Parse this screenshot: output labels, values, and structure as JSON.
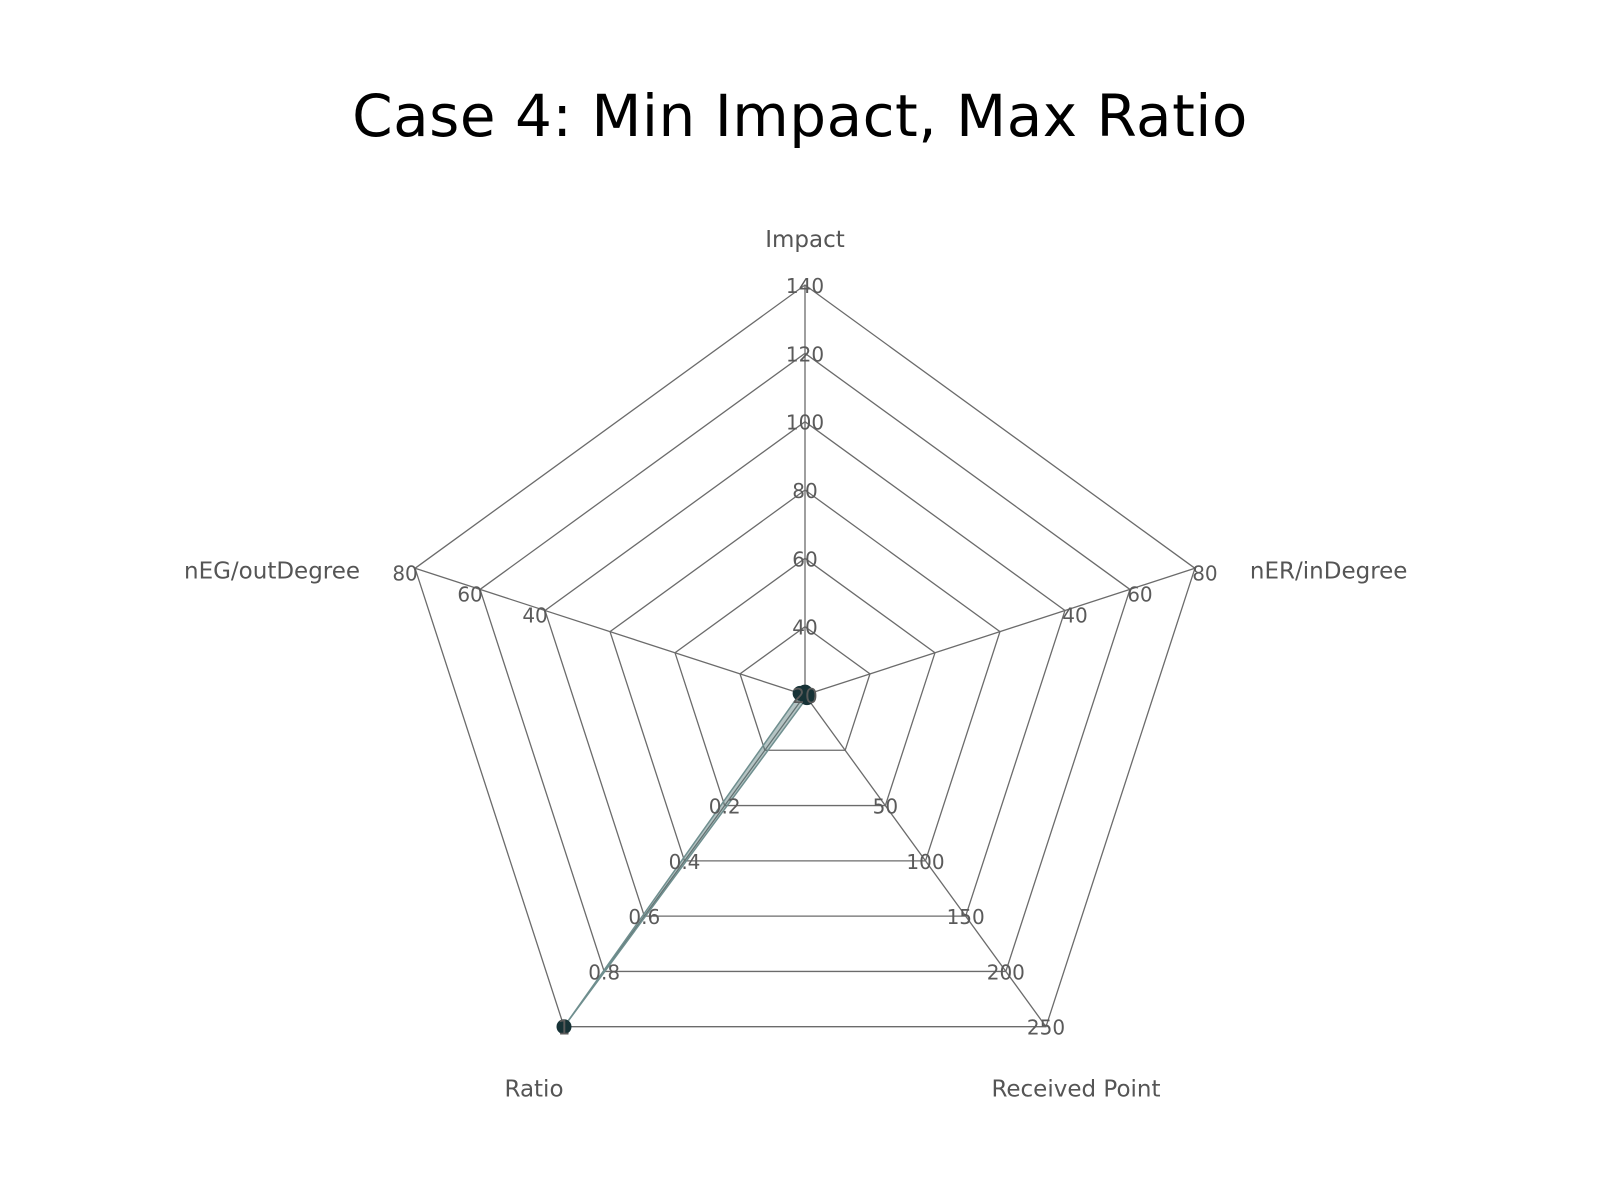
{
  "chart_data": {
    "type": "radar",
    "title": "Case 4: Min Impact, Max Ratio",
    "axes": [
      {
        "label": "Impact",
        "max": 140,
        "ticks": [
          "20",
          "40",
          "60",
          "80",
          "100",
          "120",
          "140"
        ]
      },
      {
        "label": "nER/inDegree",
        "max": 80,
        "ticks": [
          "40",
          "60",
          "80"
        ]
      },
      {
        "label": "Received Point",
        "max": 250,
        "ticks": [
          "50",
          "100",
          "150",
          "200",
          "250"
        ]
      },
      {
        "label": "Ratio",
        "max": 1,
        "ticks": [
          "0.2",
          "0.4",
          "0.6",
          "0.8",
          "1"
        ]
      },
      {
        "label": "nEG/outDegree",
        "max": 80,
        "ticks": [
          "40",
          "60",
          "80"
        ]
      }
    ],
    "series": [
      {
        "values": [
          1,
          0.5,
          2,
          1,
          1
        ]
      }
    ],
    "colors": {
      "grid": "#6b6b6b",
      "point": "#173236",
      "fill": "#5a7d7d"
    }
  }
}
